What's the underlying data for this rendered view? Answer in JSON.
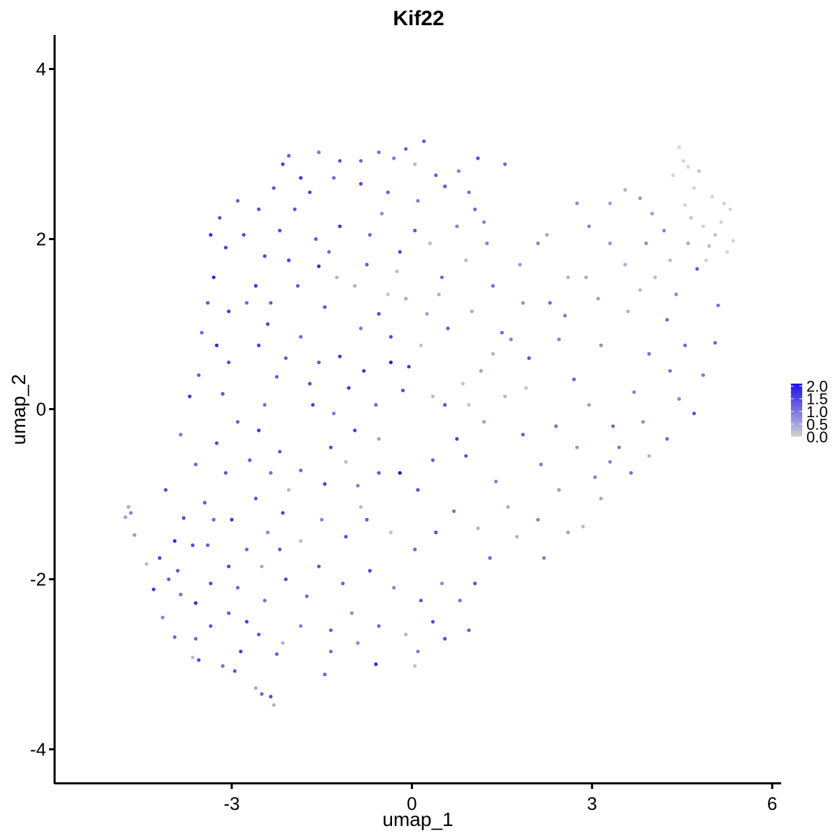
{
  "chart_data": {
    "type": "scatter",
    "title": "Kif22",
    "xlabel": "umap_1",
    "ylabel": "umap_2",
    "xlim": [
      -5.95,
      6.15
    ],
    "ylim": [
      -4.4,
      4.4
    ],
    "x_ticks": [
      -3,
      0,
      3,
      6
    ],
    "y_ticks": [
      4,
      2,
      0,
      -2,
      -4
    ],
    "x_tick_labels": [
      "-3",
      "0",
      "3",
      "6"
    ],
    "y_tick_labels": [
      "4",
      "2",
      "0",
      "-2",
      "-4"
    ],
    "grid": false,
    "legend": {
      "placement": "right",
      "type": "colorbar",
      "min": 0,
      "max": 2.1,
      "ticks": [
        2.0,
        1.5,
        1.0,
        0.5,
        0.0
      ],
      "tick_labels": [
        "2.0",
        "1.5",
        "1.0",
        "0.5",
        "0.0"
      ],
      "low_color": "#d3d3d3",
      "high_color": "#1e10f0"
    },
    "points": [
      [
        -4.77,
        -1.27,
        0.6
      ],
      [
        -4.72,
        -1.15,
        0.5
      ],
      [
        -4.68,
        -1.22,
        0.9
      ],
      [
        -4.62,
        -1.48,
        0.7
      ],
      [
        -4.42,
        -1.82,
        0.3
      ],
      [
        -0.85,
        2.92,
        1.2
      ],
      [
        -0.55,
        3.02,
        1.1
      ],
      [
        -0.1,
        3.06,
        1.3
      ],
      [
        0.2,
        3.15,
        1.4
      ],
      [
        0.05,
        2.88,
        0.3
      ],
      [
        -2.05,
        2.98,
        1.3
      ],
      [
        -1.55,
        3.02,
        1.0
      ],
      [
        -1.2,
        2.92,
        1.4
      ],
      [
        -2.15,
        2.88,
        1.6
      ],
      [
        1.1,
        2.95,
        1.5
      ],
      [
        1.55,
        2.88,
        1.2
      ],
      [
        0.78,
        2.8,
        0.9
      ],
      [
        4.45,
        3.08,
        0.0
      ],
      [
        4.52,
        2.92,
        0.0
      ],
      [
        4.6,
        2.85,
        0.0
      ],
      [
        4.78,
        2.8,
        0.2
      ],
      [
        4.35,
        2.75,
        0.0
      ],
      [
        4.7,
        2.6,
        0.0
      ],
      [
        5.0,
        2.5,
        0.0
      ],
      [
        5.2,
        2.42,
        0.0
      ],
      [
        5.3,
        2.35,
        0.0
      ],
      [
        5.15,
        2.2,
        0.0
      ],
      [
        5.35,
        1.98,
        0.0
      ],
      [
        5.25,
        1.85,
        0.0
      ],
      [
        4.95,
        1.92,
        0.3
      ],
      [
        3.55,
        2.58,
        0.4
      ],
      [
        3.3,
        2.42,
        0.6
      ],
      [
        3.8,
        2.48,
        0.7
      ],
      [
        2.75,
        2.42,
        0.8
      ],
      [
        2.1,
        1.95,
        0.9
      ],
      [
        -3.35,
        2.05,
        1.8
      ],
      [
        -3.1,
        1.9,
        1.6
      ],
      [
        -3.3,
        1.55,
        1.9
      ],
      [
        -2.8,
        2.05,
        1.5
      ],
      [
        -2.55,
        2.35,
        1.4
      ],
      [
        -2.6,
        1.45,
        1.7
      ],
      [
        -2.35,
        1.25,
        1.3
      ],
      [
        -2.05,
        1.75,
        1.6
      ],
      [
        -1.55,
        1.68,
        1.8
      ],
      [
        -1.38,
        1.85,
        1.2
      ],
      [
        -1.45,
        1.2,
        1.4
      ],
      [
        -0.95,
        1.45,
        0.4
      ],
      [
        -0.4,
        1.35,
        0.2
      ],
      [
        -0.55,
        1.12,
        1.5
      ],
      [
        0.25,
        1.12,
        0.6
      ],
      [
        -0.85,
        0.95,
        1.0
      ],
      [
        -1.2,
        0.62,
        1.7
      ],
      [
        -1.85,
        0.85,
        1.2
      ],
      [
        -2.55,
        0.75,
        1.6
      ],
      [
        -2.25,
        0.38,
        1.3
      ],
      [
        -3.25,
        0.75,
        1.9
      ],
      [
        -3.05,
        0.55,
        1.5
      ],
      [
        -3.15,
        0.18,
        1.4
      ],
      [
        -2.45,
        0.05,
        1.1
      ],
      [
        -1.65,
        0.05,
        1.6
      ],
      [
        -0.8,
        0.45,
        1.8
      ],
      [
        -0.35,
        0.55,
        2.0
      ],
      [
        -0.05,
        0.5,
        1.7
      ],
      [
        0.35,
        0.15,
        0.3
      ],
      [
        0.85,
        0.3,
        0.2
      ],
      [
        1.15,
        0.45,
        0.6
      ],
      [
        1.65,
        0.82,
        0.9
      ],
      [
        2.3,
        1.25,
        1.2
      ],
      [
        2.9,
        1.55,
        0.5
      ],
      [
        3.55,
        1.7,
        0.4
      ],
      [
        4.05,
        1.55,
        0.3
      ],
      [
        4.4,
        1.35,
        0.8
      ],
      [
        4.75,
        1.65,
        1.3
      ],
      [
        5.1,
        1.22,
        1.1
      ],
      [
        5.05,
        0.78,
        1.2
      ],
      [
        4.85,
        0.4,
        1.0
      ],
      [
        4.45,
        0.12,
        0.9
      ],
      [
        4.25,
        -0.35,
        1.2
      ],
      [
        4.7,
        -0.05,
        1.4
      ],
      [
        3.95,
        -0.55,
        0.4
      ],
      [
        3.3,
        -0.62,
        0.9
      ],
      [
        3.65,
        -0.75,
        1.1
      ],
      [
        3.15,
        -1.05,
        0.5
      ],
      [
        2.85,
        -1.38,
        0.3
      ],
      [
        2.6,
        -1.45,
        0.6
      ],
      [
        2.2,
        -1.75,
        1.0
      ],
      [
        1.75,
        -1.5,
        0.4
      ],
      [
        1.3,
        -1.75,
        1.2
      ],
      [
        1.05,
        -2.05,
        1.4
      ],
      [
        0.95,
        -2.6,
        1.3
      ],
      [
        0.55,
        -2.7,
        1.5
      ],
      [
        0.1,
        -2.85,
        1.0
      ],
      [
        0.05,
        -3.02,
        0.2
      ],
      [
        -0.6,
        -3.0,
        1.9
      ],
      [
        -0.9,
        -2.75,
        0.8
      ],
      [
        -1.35,
        -2.85,
        1.1
      ],
      [
        -1.45,
        -3.12,
        1.2
      ],
      [
        -1.85,
        -2.55,
        0.9
      ],
      [
        -2.25,
        -2.88,
        1.3
      ],
      [
        -2.35,
        -3.38,
        1.5
      ],
      [
        -2.3,
        -3.48,
        0.4
      ],
      [
        -2.5,
        -3.35,
        1.2
      ],
      [
        -2.6,
        -3.28,
        0.5
      ],
      [
        -2.95,
        -3.08,
        1.4
      ],
      [
        -3.15,
        -3.02,
        1.1
      ],
      [
        -3.55,
        -2.95,
        1.5
      ],
      [
        -3.65,
        -2.92,
        0.3
      ],
      [
        -3.95,
        -2.68,
        1.2
      ],
      [
        -4.15,
        -2.45,
        0.9
      ],
      [
        -4.3,
        -2.12,
        1.7
      ],
      [
        -4.05,
        -2.0,
        1.3
      ],
      [
        -3.85,
        -2.18,
        1.1
      ],
      [
        -3.6,
        -2.28,
        1.8
      ],
      [
        -3.35,
        -2.05,
        1.5
      ],
      [
        -3.05,
        -1.85,
        1.6
      ],
      [
        -2.75,
        -1.65,
        1.2
      ],
      [
        -2.4,
        -1.45,
        0.8
      ],
      [
        -2.15,
        -1.22,
        1.6
      ],
      [
        -2.05,
        -0.95,
        0.3
      ],
      [
        -2.6,
        -1.05,
        1.4
      ],
      [
        -3.0,
        -1.3,
        1.7
      ],
      [
        -3.45,
        -1.1,
        1.3
      ],
      [
        -3.8,
        -1.28,
        1.5
      ],
      [
        -3.95,
        -1.55,
        1.9
      ],
      [
        -4.2,
        -1.75,
        1.6
      ],
      [
        -3.6,
        -0.65,
        1.2
      ],
      [
        -3.25,
        -0.4,
        1.5
      ],
      [
        -2.9,
        -0.15,
        1.3
      ],
      [
        -2.55,
        -0.25,
        1.7
      ],
      [
        -2.2,
        -0.5,
        1.4
      ],
      [
        -1.85,
        -0.72,
        1.2
      ],
      [
        -1.45,
        -0.88,
        1.6
      ],
      [
        -1.1,
        -0.62,
        0.3
      ],
      [
        -0.9,
        -0.9,
        1.0
      ],
      [
        -0.55,
        -0.75,
        1.4
      ],
      [
        -0.2,
        -0.75,
        2.1
      ],
      [
        0.1,
        -0.95,
        1.5
      ],
      [
        0.35,
        -0.6,
        1.3
      ],
      [
        0.75,
        -0.35,
        1.6
      ],
      [
        0.55,
        0.05,
        1.4
      ],
      [
        -0.15,
        0.22,
        1.5
      ],
      [
        -0.6,
        0.05,
        1.2
      ],
      [
        -0.95,
        -0.25,
        1.6
      ],
      [
        -1.3,
        -0.05,
        1.0
      ],
      [
        -1.7,
        0.3,
        1.5
      ],
      [
        -2.1,
        0.6,
        1.3
      ],
      [
        -2.4,
        1.0,
        1.6
      ],
      [
        -2.75,
        1.25,
        1.2
      ],
      [
        -3.05,
        1.15,
        1.7
      ],
      [
        -3.4,
        1.25,
        1.4
      ],
      [
        -3.5,
        0.9,
        1.2
      ],
      [
        -3.55,
        0.4,
        1.3
      ],
      [
        -3.7,
        0.15,
        1.8
      ],
      [
        -3.85,
        -0.3,
        1.0
      ],
      [
        -4.1,
        -0.95,
        1.5
      ],
      [
        -1.95,
        2.35,
        1.4
      ],
      [
        -1.7,
        2.55,
        1.6
      ],
      [
        -1.3,
        2.72,
        1.2
      ],
      [
        -0.85,
        2.65,
        1.5
      ],
      [
        -0.4,
        2.55,
        1.3
      ],
      [
        0.1,
        2.45,
        1.0
      ],
      [
        0.55,
        2.62,
        1.4
      ],
      [
        1.05,
        2.35,
        1.2
      ],
      [
        0.75,
        2.15,
        0.9
      ],
      [
        0.3,
        1.95,
        0.3
      ],
      [
        -0.2,
        1.85,
        1.6
      ],
      [
        -0.7,
        2.05,
        1.2
      ],
      [
        -1.2,
        2.15,
        1.7
      ],
      [
        -1.6,
        2.0,
        1.3
      ],
      [
        -2.2,
        2.1,
        1.5
      ],
      [
        -2.45,
        1.8,
        1.6
      ],
      [
        -1.9,
        1.45,
        1.3
      ],
      [
        -1.25,
        1.55,
        0.4
      ],
      [
        -0.75,
        1.7,
        1.3
      ],
      [
        -0.25,
        1.62,
        0.3
      ],
      [
        0.5,
        1.55,
        1.2
      ],
      [
        0.9,
        1.75,
        0.3
      ],
      [
        1.35,
        1.45,
        1.1
      ],
      [
        1.85,
        1.25,
        0.8
      ],
      [
        1.5,
        0.9,
        1.2
      ],
      [
        1.95,
        0.6,
        1.4
      ],
      [
        2.45,
        0.82,
        0.9
      ],
      [
        2.7,
        0.35,
        1.3
      ],
      [
        2.95,
        0.05,
        0.6
      ],
      [
        3.35,
        -0.2,
        1.2
      ],
      [
        3.7,
        0.2,
        0.9
      ],
      [
        3.95,
        0.65,
        1.1
      ],
      [
        4.25,
        1.05,
        1.2
      ],
      [
        3.6,
        1.15,
        0.4
      ],
      [
        3.15,
        0.75,
        0.8
      ],
      [
        2.6,
        1.55,
        0.4
      ],
      [
        2.25,
        2.05,
        0.5
      ],
      [
        1.8,
        1.7,
        0.7
      ],
      [
        1.25,
        1.95,
        0.9
      ],
      [
        1.0,
        1.15,
        0.5
      ],
      [
        0.6,
        0.95,
        1.3
      ],
      [
        0.15,
        0.75,
        0.2
      ],
      [
        -0.35,
        0.85,
        1.5
      ],
      [
        -0.1,
        1.3,
        0.5
      ],
      [
        0.45,
        1.35,
        0.4
      ],
      [
        1.55,
        0.15,
        0.3
      ],
      [
        1.2,
        -0.15,
        0.6
      ],
      [
        0.9,
        -0.55,
        1.4
      ],
      [
        1.4,
        -0.85,
        0.9
      ],
      [
        1.85,
        -0.3,
        1.3
      ],
      [
        2.15,
        -0.65,
        1.0
      ],
      [
        2.45,
        -0.95,
        0.6
      ],
      [
        2.1,
        -1.3,
        0.9
      ],
      [
        1.6,
        -1.15,
        0.5
      ],
      [
        1.1,
        -1.4,
        0.4
      ],
      [
        0.7,
        -1.2,
        1.1
      ],
      [
        0.4,
        -1.45,
        1.5
      ],
      [
        0.05,
        -1.65,
        1.2
      ],
      [
        -0.35,
        -1.45,
        0.2
      ],
      [
        -0.75,
        -1.3,
        1.3
      ],
      [
        -1.1,
        -1.5,
        1.5
      ],
      [
        -1.5,
        -1.3,
        0.9
      ],
      [
        -1.85,
        -1.55,
        0.3
      ],
      [
        -1.55,
        -1.85,
        1.4
      ],
      [
        -1.15,
        -2.05,
        1.2
      ],
      [
        -0.7,
        -1.9,
        1.6
      ],
      [
        -0.3,
        -2.1,
        0.9
      ],
      [
        0.15,
        -2.25,
        1.4
      ],
      [
        0.5,
        -2.05,
        0.8
      ],
      [
        0.8,
        -2.25,
        1.1
      ],
      [
        0.35,
        -2.5,
        1.5
      ],
      [
        -0.1,
        -2.65,
        0.3
      ],
      [
        -0.55,
        -2.55,
        1.2
      ],
      [
        -1.0,
        -2.4,
        0.8
      ],
      [
        -1.35,
        -2.6,
        1.3
      ],
      [
        -1.75,
        -2.2,
        1.2
      ],
      [
        -2.1,
        -2.0,
        1.5
      ],
      [
        -2.45,
        -2.25,
        1.1
      ],
      [
        -2.75,
        -2.5,
        1.6
      ],
      [
        -3.05,
        -2.4,
        1.3
      ],
      [
        -3.35,
        -2.55,
        1.4
      ],
      [
        -3.6,
        -2.7,
        1.2
      ],
      [
        -2.85,
        -2.85,
        1.7
      ],
      [
        -2.55,
        -2.65,
        1.4
      ],
      [
        -2.15,
        -2.75,
        0.4
      ],
      [
        -3.9,
        -1.9,
        1.4
      ],
      [
        -3.4,
        -1.6,
        1.3
      ],
      [
        -2.9,
        -2.1,
        1.2
      ],
      [
        -2.5,
        -1.85,
        0.5
      ],
      [
        -2.2,
        -1.65,
        1.4
      ],
      [
        4.0,
        2.3,
        0.6
      ],
      [
        4.2,
        2.1,
        0.9
      ],
      [
        3.9,
        1.95,
        0.8
      ],
      [
        4.55,
        2.4,
        0.0
      ],
      [
        4.65,
        2.25,
        0.2
      ],
      [
        4.85,
        2.15,
        0.0
      ],
      [
        5.05,
        2.05,
        0.2
      ],
      [
        4.9,
        1.75,
        0.0
      ],
      [
        4.6,
        1.95,
        0.5
      ],
      [
        4.3,
        1.75,
        0.3
      ],
      [
        3.3,
        1.95,
        0.7
      ],
      [
        2.95,
        2.15,
        0.9
      ],
      [
        3.1,
        1.3,
        0.6
      ],
      [
        2.55,
        1.1,
        1.0
      ],
      [
        3.8,
        1.4,
        0.3
      ],
      [
        4.55,
        0.75,
        1.2
      ],
      [
        4.3,
        0.45,
        1.1
      ],
      [
        3.85,
        -0.15,
        0.8
      ],
      [
        3.45,
        -0.45,
        1.0
      ],
      [
        3.05,
        -0.8,
        0.9
      ],
      [
        2.75,
        -0.45,
        0.7
      ],
      [
        2.4,
        -0.2,
        1.1
      ],
      [
        1.9,
        0.25,
        0.2
      ],
      [
        1.35,
        0.65,
        0.4
      ],
      [
        0.95,
        0.05,
        0.2
      ],
      [
        -1.55,
        0.55,
        1.4
      ],
      [
        -1.05,
        0.25,
        1.7
      ],
      [
        -0.55,
        -0.35,
        0.6
      ],
      [
        -0.85,
        -1.15,
        0.3
      ],
      [
        -1.35,
        -0.45,
        1.5
      ],
      [
        -2.35,
        -0.75,
        1.1
      ],
      [
        -2.7,
        -0.6,
        1.3
      ],
      [
        -3.1,
        -0.75,
        1.4
      ],
      [
        -3.3,
        -1.3,
        1.2
      ],
      [
        -3.65,
        -1.6,
        1.5
      ],
      [
        -3.2,
        2.25,
        1.5
      ],
      [
        -2.9,
        2.45,
        1.3
      ],
      [
        -2.3,
        2.6,
        1.4
      ],
      [
        -1.85,
        2.72,
        1.7
      ],
      [
        -0.3,
        2.95,
        1.0
      ],
      [
        0.4,
        2.75,
        1.3
      ],
      [
        0.95,
        2.55,
        1.1
      ],
      [
        1.2,
        2.2,
        0.9
      ],
      [
        0.05,
        2.1,
        1.4
      ],
      [
        -0.5,
        2.3,
        0.8
      ]
    ]
  }
}
